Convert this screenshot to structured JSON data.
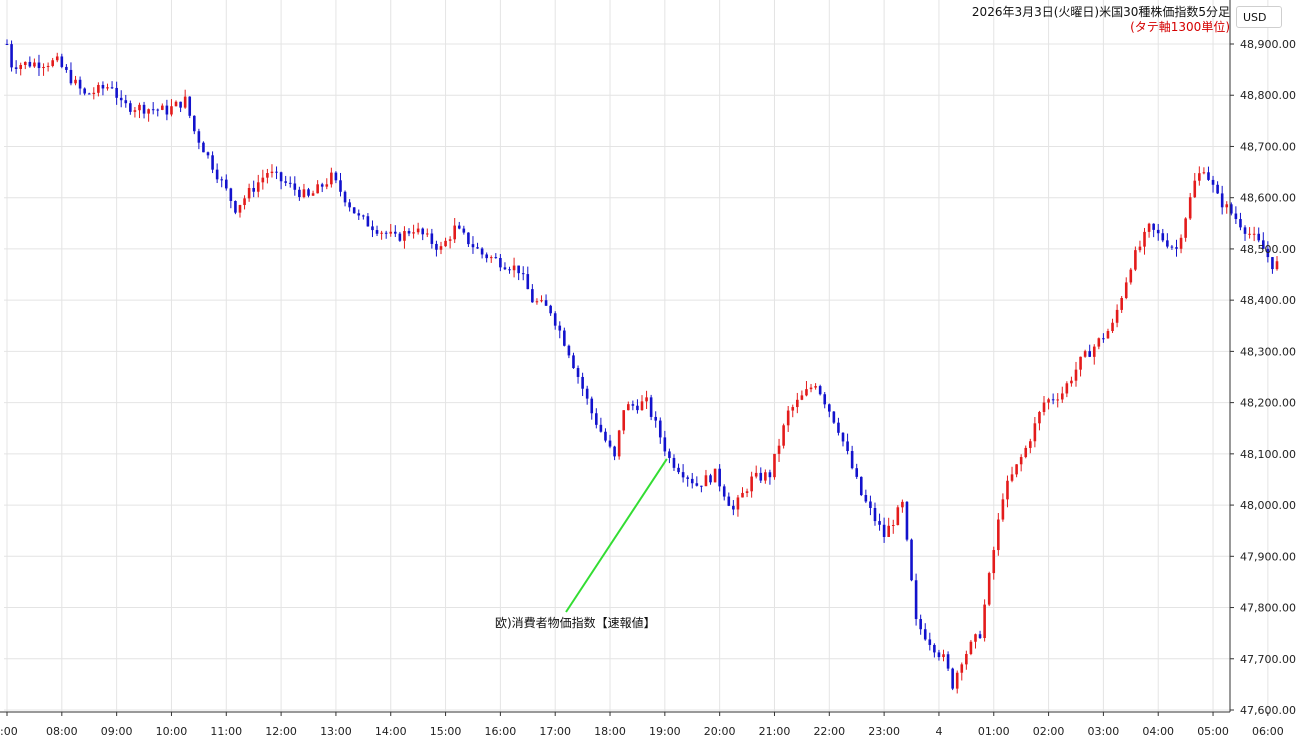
{
  "header": {
    "title": "2026年3月3日(火曜日)米国30種株価指数5分足",
    "subtitle": "(タテ軸1300単位)",
    "currency": "USD"
  },
  "colors": {
    "up": "#e31b1b",
    "down": "#1212cc",
    "grid": "#e4e4e4",
    "annotation_line": "#33dd33",
    "axis": "#333333"
  },
  "chart_data": {
    "type": "candlestick",
    "title": "2026年3月3日(火曜日)米国30種株価指数5分足",
    "subtitle": "(タテ軸1300単位)",
    "unit": "USD",
    "ylim": [
      47580,
      48960
    ],
    "y_ticks": [
      47600,
      47700,
      47800,
      47900,
      48000,
      48100,
      48200,
      48300,
      48400,
      48500,
      48600,
      48700,
      48800,
      48900
    ],
    "y_tick_labels": [
      "47,600.00",
      "47,700.00",
      "47,800.00",
      "47,900.00",
      "48,000.00",
      "48,100.00",
      "48,200.00",
      "48,300.00",
      "48,400.00",
      "48,500.00",
      "48,600.00",
      "48,700.00",
      "48,800.00",
      "48,900.00"
    ],
    "x_tick_labels": [
      ":00",
      "08:00",
      "09:00",
      "10:00",
      "11:00",
      "12:00",
      "13:00",
      "14:00",
      "15:00",
      "16:00",
      "17:00",
      "18:00",
      "19:00",
      "20:00",
      "21:00",
      "22:00",
      "23:00",
      "4",
      "01:00",
      "02:00",
      "03:00",
      "04:00",
      "05:00",
      "06:00"
    ],
    "grid": true,
    "candle_interval": "5分",
    "price_path_anchors": [
      {
        "time": "07:05",
        "value": 48900
      },
      {
        "time": "07:10",
        "value": 48860
      },
      {
        "time": "08:00",
        "value": 48865
      },
      {
        "time": "08:30",
        "value": 48800
      },
      {
        "time": "09:00",
        "value": 48820
      },
      {
        "time": "09:10",
        "value": 48780
      },
      {
        "time": "10:00",
        "value": 48770
      },
      {
        "time": "10:20",
        "value": 48790
      },
      {
        "time": "10:30",
        "value": 48730
      },
      {
        "time": "11:15",
        "value": 48580
      },
      {
        "time": "11:50",
        "value": 48650
      },
      {
        "time": "12:35",
        "value": 48600
      },
      {
        "time": "13:00",
        "value": 48640
      },
      {
        "time": "13:30",
        "value": 48560
      },
      {
        "time": "14:10",
        "value": 48520
      },
      {
        "time": "14:30",
        "value": 48540
      },
      {
        "time": "15:00",
        "value": 48500
      },
      {
        "time": "15:15",
        "value": 48540
      },
      {
        "time": "15:45",
        "value": 48490
      },
      {
        "time": "16:25",
        "value": 48460
      },
      {
        "time": "16:40",
        "value": 48400
      },
      {
        "time": "17:00",
        "value": 48380
      },
      {
        "time": "17:20",
        "value": 48300
      },
      {
        "time": "17:45",
        "value": 48180
      },
      {
        "time": "18:10",
        "value": 48090
      },
      {
        "time": "18:20",
        "value": 48190
      },
      {
        "time": "18:45",
        "value": 48200
      },
      {
        "time": "19:10",
        "value": 48090
      },
      {
        "time": "19:40",
        "value": 48040
      },
      {
        "time": "20:00",
        "value": 48060
      },
      {
        "time": "20:20",
        "value": 47990
      },
      {
        "time": "20:40",
        "value": 48050
      },
      {
        "time": "21:00",
        "value": 48060
      },
      {
        "time": "21:20",
        "value": 48180
      },
      {
        "time": "21:40",
        "value": 48220
      },
      {
        "time": "21:50",
        "value": 48240
      },
      {
        "time": "22:15",
        "value": 48150
      },
      {
        "time": "22:40",
        "value": 48020
      },
      {
        "time": "23:05",
        "value": 47940
      },
      {
        "time": "23:25",
        "value": 48000
      },
      {
        "time": "23:40",
        "value": 47770
      },
      {
        "time": "00:10",
        "value": 47700
      },
      {
        "time": "00:20",
        "value": 47650
      },
      {
        "time": "00:30",
        "value": 47700
      },
      {
        "time": "00:50",
        "value": 47750
      },
      {
        "time": "01:15",
        "value": 48020
      },
      {
        "time": "01:40",
        "value": 48110
      },
      {
        "time": "02:00",
        "value": 48200
      },
      {
        "time": "02:20",
        "value": 48220
      },
      {
        "time": "02:40",
        "value": 48280
      },
      {
        "time": "03:15",
        "value": 48350
      },
      {
        "time": "03:35",
        "value": 48470
      },
      {
        "time": "03:55",
        "value": 48540
      },
      {
        "time": "04:25",
        "value": 48500
      },
      {
        "time": "04:45",
        "value": 48630
      },
      {
        "time": "04:55",
        "value": 48660
      },
      {
        "time": "05:10",
        "value": 48600
      },
      {
        "time": "05:30",
        "value": 48560
      },
      {
        "time": "06:00",
        "value": 48500
      },
      {
        "time": "06:10",
        "value": 48470
      }
    ],
    "annotations": [
      {
        "time": "19:00",
        "value": 48090,
        "label": "欧)消費者物価指数【速報値】"
      }
    ]
  }
}
